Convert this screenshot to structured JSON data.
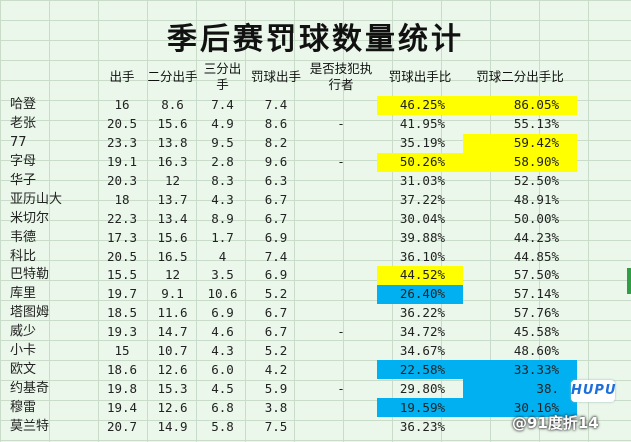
{
  "title": "季后赛罚球数量统计",
  "headers": [
    "",
    "出手",
    "二分出手",
    "三分出手",
    "罚球出手",
    "是否技犯执行者",
    "罚球出手比",
    "罚球二分出手比"
  ],
  "rows": [
    {
      "name": "哈登",
      "fga": "16",
      "two": "8.6",
      "three": "7.4",
      "fta": "7.4",
      "tech": "",
      "ratio": "46.25%",
      "ratio2": "86.05%",
      "hl1": "yellow",
      "hl2": "yellow"
    },
    {
      "name": "老张",
      "fga": "20.5",
      "two": "15.6",
      "three": "4.9",
      "fta": "8.6",
      "tech": "-",
      "ratio": "41.95%",
      "ratio2": "55.13%",
      "hl1": "",
      "hl2": ""
    },
    {
      "name": "77",
      "fga": "23.3",
      "two": "13.8",
      "three": "9.5",
      "fta": "8.2",
      "tech": "",
      "ratio": "35.19%",
      "ratio2": "59.42%",
      "hl1": "",
      "hl2": "yellow"
    },
    {
      "name": "字母",
      "fga": "19.1",
      "two": "16.3",
      "three": "2.8",
      "fta": "9.6",
      "tech": "-",
      "ratio": "50.26%",
      "ratio2": "58.90%",
      "hl1": "yellow",
      "hl2": "yellow"
    },
    {
      "name": "华子",
      "fga": "20.3",
      "two": "12",
      "three": "8.3",
      "fta": "6.3",
      "tech": "",
      "ratio": "31.03%",
      "ratio2": "52.50%",
      "hl1": "",
      "hl2": ""
    },
    {
      "name": "亚历山大",
      "fga": "18",
      "two": "13.7",
      "three": "4.3",
      "fta": "6.7",
      "tech": "",
      "ratio": "37.22%",
      "ratio2": "48.91%",
      "hl1": "",
      "hl2": ""
    },
    {
      "name": "米切尔",
      "fga": "22.3",
      "two": "13.4",
      "three": "8.9",
      "fta": "6.7",
      "tech": "",
      "ratio": "30.04%",
      "ratio2": "50.00%",
      "hl1": "",
      "hl2": ""
    },
    {
      "name": "韦德",
      "fga": "17.3",
      "two": "15.6",
      "three": "1.7",
      "fta": "6.9",
      "tech": "",
      "ratio": "39.88%",
      "ratio2": "44.23%",
      "hl1": "",
      "hl2": ""
    },
    {
      "name": "科比",
      "fga": "20.5",
      "two": "16.5",
      "three": "4",
      "fta": "7.4",
      "tech": "",
      "ratio": "36.10%",
      "ratio2": "44.85%",
      "hl1": "",
      "hl2": ""
    },
    {
      "name": "巴特勒",
      "fga": "15.5",
      "two": "12",
      "three": "3.5",
      "fta": "6.9",
      "tech": "",
      "ratio": "44.52%",
      "ratio2": "57.50%",
      "hl1": "yellow",
      "hl2": ""
    },
    {
      "name": "库里",
      "fga": "19.7",
      "two": "9.1",
      "three": "10.6",
      "fta": "5.2",
      "tech": "",
      "ratio": "26.40%",
      "ratio2": "57.14%",
      "hl1": "blue",
      "hl2": ""
    },
    {
      "name": "塔图姆",
      "fga": "18.5",
      "two": "11.6",
      "three": "6.9",
      "fta": "6.7",
      "tech": "",
      "ratio": "36.22%",
      "ratio2": "57.76%",
      "hl1": "",
      "hl2": ""
    },
    {
      "name": "威少",
      "fga": "19.3",
      "two": "14.7",
      "three": "4.6",
      "fta": "6.7",
      "tech": "-",
      "ratio": "34.72%",
      "ratio2": "45.58%",
      "hl1": "",
      "hl2": ""
    },
    {
      "name": "小卡",
      "fga": "15",
      "two": "10.7",
      "three": "4.3",
      "fta": "5.2",
      "tech": "",
      "ratio": "34.67%",
      "ratio2": "48.60%",
      "hl1": "",
      "hl2": ""
    },
    {
      "name": "欧文",
      "fga": "18.6",
      "two": "12.6",
      "three": "6.0",
      "fta": "4.2",
      "tech": "",
      "ratio": "22.58%",
      "ratio2": "33.33%",
      "hl1": "blue",
      "hl2": "blue"
    },
    {
      "name": "约基奇",
      "fga": "19.8",
      "two": "15.3",
      "three": "4.5",
      "fta": "5.9",
      "tech": "-",
      "ratio": "29.80%",
      "ratio2": "38.",
      "hl1": "",
      "hl2": "blue"
    },
    {
      "name": "穆雷",
      "fga": "19.4",
      "two": "12.6",
      "three": "6.8",
      "fta": "3.8",
      "tech": "",
      "ratio": "19.59%",
      "ratio2": "30.16%",
      "hl1": "blue",
      "hl2": "blue"
    },
    {
      "name": "莫兰特",
      "fga": "20.7",
      "two": "14.9",
      "three": "5.8",
      "fta": "7.5",
      "tech": "",
      "ratio": "36.23%",
      "ratio2": "",
      "hl1": "",
      "hl2": ""
    }
  ],
  "colors": {
    "yellow": "#ffff00",
    "blue": "#00b0f0"
  },
  "watermark": {
    "logo": "HUPU",
    "text": "@91度折14"
  }
}
